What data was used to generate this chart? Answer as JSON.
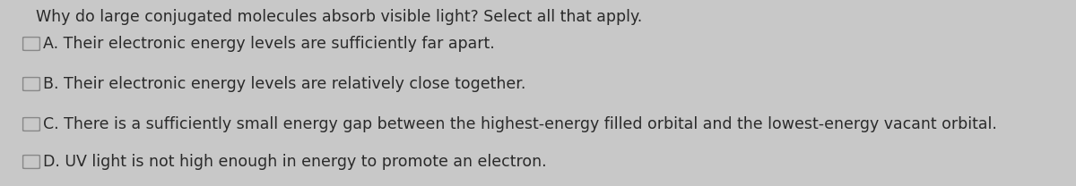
{
  "background_color": "#c8c8c8",
  "text_color": "#2a2a2a",
  "question": "Why do large conjugated molecules absorb visible light? Select all that apply.",
  "options": [
    "A. Their electronic energy levels are sufficiently far apart.",
    "B. Their electronic energy levels are relatively close together.",
    "C. There is a sufficiently small energy gap between the highest-energy filled orbital and the lowest-energy vacant orbital.",
    "D. UV light is not high enough in energy to promote an electron."
  ],
  "question_fontsize": 12.5,
  "option_fontsize": 12.5,
  "fig_width": 12.0,
  "fig_height": 2.08,
  "dpi": 100
}
